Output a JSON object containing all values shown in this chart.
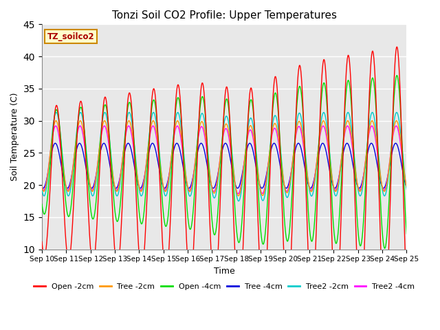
{
  "title": "Tonzi Soil CO2 Profile: Upper Temperatures",
  "xlabel": "Time",
  "ylabel": "Soil Temperature (C)",
  "ylim": [
    10,
    45
  ],
  "yticks": [
    10,
    15,
    20,
    25,
    30,
    35,
    40,
    45
  ],
  "n_days": 15,
  "x_tick_labels": [
    "Sep 10",
    "Sep 11",
    "Sep 12",
    "Sep 13",
    "Sep 14",
    "Sep 15",
    "Sep 16",
    "Sep 17",
    "Sep 18",
    "Sep 19",
    "Sep 20",
    "Sep 21",
    "Sep 22",
    "Sep 23",
    "Sep 24",
    "Sep 25"
  ],
  "series_colors": {
    "Open -2cm": "#ff0000",
    "Tree -2cm": "#ff9900",
    "Open -4cm": "#00dd00",
    "Tree -4cm": "#0000dd",
    "Tree2 -2cm": "#00cccc",
    "Tree2 -4cm": "#ff00ff"
  },
  "legend_labels": [
    "Open -2cm",
    "Tree -2cm",
    "Open -4cm",
    "Tree -4cm",
    "Tree2 -2cm",
    "Tree2 -4cm"
  ],
  "annotation_text": "TZ_soilco2",
  "annotation_color": "#aa0000",
  "annotation_bg": "#ffffcc",
  "annotation_border": "#cc8800",
  "bg_color": "#e8e8e8",
  "grid_color": "#ffffff",
  "line_width": 1.0,
  "figsize": [
    6.4,
    4.8
  ],
  "dpi": 100
}
